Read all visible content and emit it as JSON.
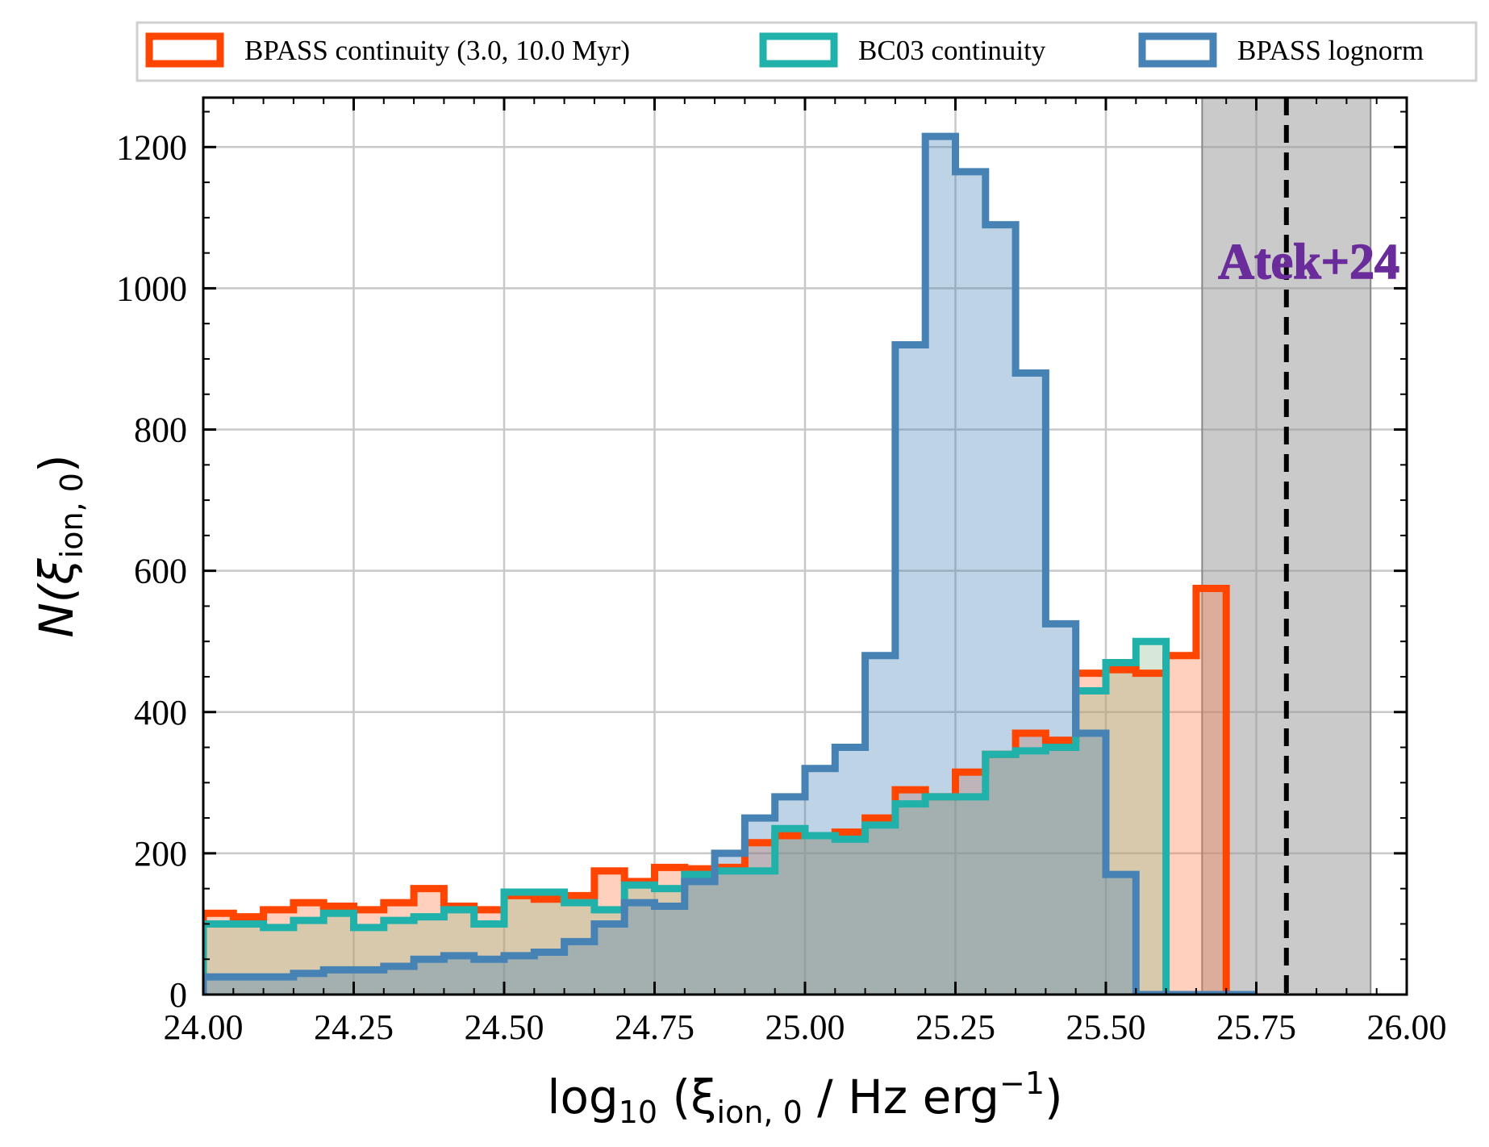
{
  "chart_data": {
    "type": "histogram",
    "xlabel_main": "log",
    "xlabel_sub": "10",
    "xlabel_rest": " (ξ",
    "xlabel_sub2": "ion, 0",
    "xlabel_rest2": " / Hz erg",
    "xlabel_sup": "−1",
    "xlabel_close": ")",
    "ylabel_main": "N(ξ",
    "ylabel_sub": "ion, 0",
    "ylabel_close": ")",
    "xlim": [
      24.0,
      26.0
    ],
    "ylim": [
      0,
      1270
    ],
    "xticks": [
      24.0,
      24.25,
      24.5,
      24.75,
      25.0,
      25.25,
      25.5,
      25.75,
      26.0
    ],
    "xtick_labels": [
      "24.00",
      "24.25",
      "24.50",
      "24.75",
      "25.00",
      "25.25",
      "25.50",
      "25.75",
      "26.00"
    ],
    "yticks": [
      0,
      200,
      400,
      600,
      800,
      1000,
      1200
    ],
    "ytick_labels": [
      "0",
      "200",
      "400",
      "600",
      "800",
      "1000",
      "1200"
    ],
    "grid": true,
    "legend_position": "top, outside plot",
    "bin_edges": [
      24.0,
      24.05,
      24.1,
      24.15,
      24.2,
      24.25,
      24.3,
      24.35,
      24.4,
      24.45,
      24.5,
      24.55,
      24.6,
      24.65,
      24.7,
      24.75,
      24.8,
      24.85,
      24.9,
      24.95,
      25.0,
      25.05,
      25.1,
      25.15,
      25.2,
      25.25,
      25.3,
      25.35,
      25.4,
      25.45,
      25.5,
      25.55,
      25.6,
      25.65,
      25.7,
      25.75
    ],
    "series": [
      {
        "name": "BPASS continuity (3.0, 10.0 Myr)",
        "color": "#ff4500",
        "fill": "rgba(255,120,70,0.35)",
        "counts": [
          115,
          110,
          120,
          130,
          125,
          120,
          130,
          150,
          125,
          120,
          140,
          135,
          140,
          175,
          160,
          180,
          178,
          180,
          215,
          225,
          225,
          230,
          250,
          290,
          280,
          315,
          340,
          370,
          360,
          455,
          460,
          455,
          480,
          575,
          0
        ]
      },
      {
        "name": "BC03 continuity",
        "color": "#20b2aa",
        "fill": "rgba(143,188,143,0.35)",
        "counts": [
          100,
          100,
          95,
          105,
          115,
          95,
          105,
          110,
          120,
          100,
          145,
          145,
          130,
          120,
          155,
          150,
          170,
          175,
          175,
          235,
          225,
          220,
          240,
          270,
          280,
          280,
          340,
          345,
          350,
          430,
          470,
          500,
          0,
          0,
          0
        ]
      },
      {
        "name": "BPASS lognorm",
        "color": "#4682b4",
        "fill": "rgba(70,130,180,0.35)",
        "counts": [
          25,
          25,
          25,
          30,
          35,
          35,
          40,
          50,
          55,
          50,
          55,
          60,
          75,
          100,
          130,
          125,
          160,
          200,
          250,
          280,
          320,
          350,
          480,
          920,
          1215,
          1165,
          1090,
          880,
          525,
          370,
          170,
          0,
          0,
          0,
          0
        ]
      }
    ],
    "annotations": [
      {
        "text": "Atek+24",
        "color": "#6a2c9a",
        "x_line": 25.8,
        "band": [
          25.66,
          25.94
        ]
      }
    ]
  }
}
